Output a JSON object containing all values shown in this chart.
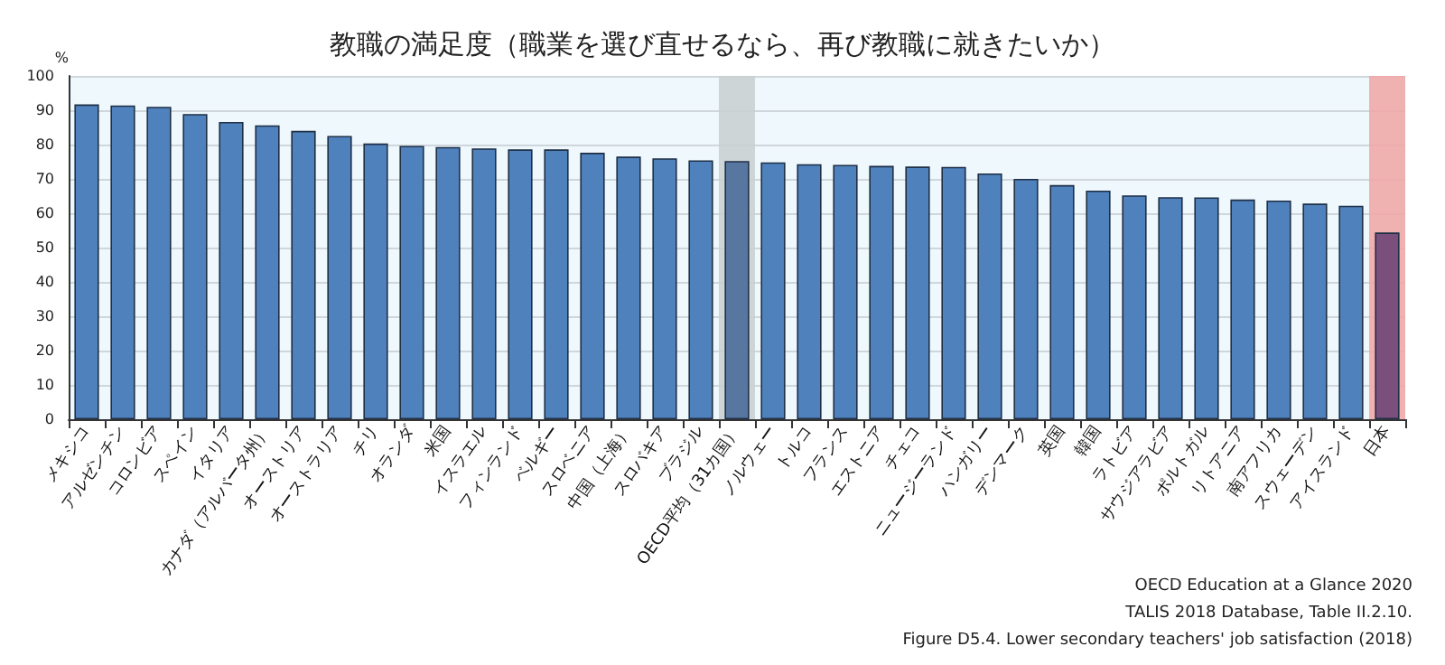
{
  "chart_data": {
    "type": "bar",
    "title": "教職の満足度（職業を選び直せるなら、再び教職に就きたいか）",
    "ylabel": "%",
    "categories": [
      "メキシコ",
      "アルゼンチン",
      "コロンビア",
      "スペイン",
      "イタリア",
      "カナダ（アルバータ州）",
      "オーストリア",
      "オーストラリア",
      "チリ",
      "オランダ",
      "米国",
      "イスラエル",
      "フィンランド",
      "ベルギー",
      "スロベニア",
      "中国（上海）",
      "スロバキア",
      "ブラジル",
      "OECD平均（31カ国）",
      "ノルウェー",
      "トルコ",
      "フランス",
      "エストニア",
      "チェコ",
      "ニュージーランド",
      "ハンガリー",
      "デンマーク",
      "英国",
      "韓国",
      "ラトビア",
      "サウジアラビア",
      "ポルトガル",
      "リトアニア",
      "南アフリカ",
      "スウェーデン",
      "アイスランド",
      "日本"
    ],
    "values": [
      91.7,
      91.4,
      91.0,
      88.9,
      86.6,
      85.6,
      84.0,
      82.5,
      80.3,
      79.6,
      79.3,
      78.9,
      78.6,
      78.6,
      77.6,
      76.5,
      76.0,
      75.4,
      75.2,
      74.8,
      74.3,
      74.1,
      73.8,
      73.6,
      73.5,
      71.6,
      70.0,
      68.2,
      66.6,
      65.2,
      64.7,
      64.6,
      64.0,
      63.7,
      62.8,
      62.2,
      54.4
    ],
    "colors": [
      "#4f81bd",
      "#4f81bd",
      "#4f81bd",
      "#4f81bd",
      "#4f81bd",
      "#4f81bd",
      "#4f81bd",
      "#4f81bd",
      "#4f81bd",
      "#4f81bd",
      "#4f81bd",
      "#4f81bd",
      "#4f81bd",
      "#4f81bd",
      "#4f81bd",
      "#4f81bd",
      "#4f81bd",
      "#4f81bd",
      "#5877a0",
      "#4f81bd",
      "#4f81bd",
      "#4f81bd",
      "#4f81bd",
      "#4f81bd",
      "#4f81bd",
      "#4f81bd",
      "#4f81bd",
      "#4f81bd",
      "#4f81bd",
      "#4f81bd",
      "#4f81bd",
      "#4f81bd",
      "#4f81bd",
      "#4f81bd",
      "#4f81bd",
      "#4f81bd",
      "#7b4f7b"
    ],
    "ylim": [
      0,
      100
    ],
    "yticks": [
      0,
      10,
      20,
      30,
      40,
      50,
      60,
      70,
      80,
      90,
      100
    ],
    "grid": "y",
    "bands": [
      {
        "axis": "x",
        "from": "OECD平均（31カ国）",
        "to": "OECD平均（31カ国）",
        "label": null,
        "color": "#c9d0d1"
      },
      {
        "axis": "x",
        "from": "日本",
        "to": "日本",
        "label": null,
        "color": "#f0a9a9"
      }
    ],
    "annotations": [
      "OECD Education at a Glance 2020",
      "TALIS 2018 Database, Table II.2.10.",
      "Figure D5.4. Lower secondary teachers' job satisfaction (2018)"
    ]
  }
}
